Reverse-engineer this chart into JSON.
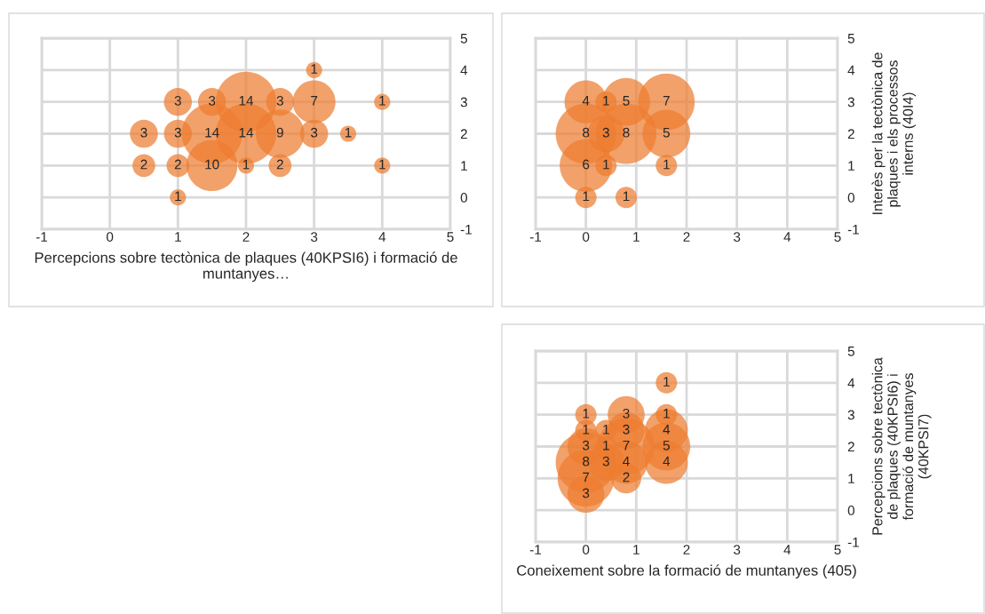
{
  "chart_data": [
    {
      "type": "bubble",
      "xlabel": "Percepcions sobre tectònica de plaques (40KPSI6) i formació de muntanyes…",
      "xlim": [
        -1,
        5
      ],
      "xticks": [
        -1,
        0,
        1,
        2,
        3,
        4,
        5
      ],
      "ylim": [
        -1,
        5
      ],
      "yticks": [
        -1,
        0,
        1,
        2,
        3,
        4,
        5
      ],
      "grid": true,
      "series": [
        {
          "color": "#ed7d31",
          "x": [
            3,
            1,
            1.5,
            2,
            2.5,
            3,
            4,
            0.5,
            1,
            1.5,
            2,
            2.5,
            3,
            3.5,
            0.5,
            1,
            1.5,
            2,
            2.5,
            4,
            1
          ],
          "values": [
            4,
            3,
            3,
            3,
            3,
            3,
            3,
            2,
            2,
            2,
            2,
            2,
            2,
            2,
            1,
            1,
            1,
            1,
            1,
            1,
            0
          ],
          "sizes": [
            1,
            3,
            3,
            14,
            3,
            7,
            1,
            3,
            3,
            14,
            14,
            9,
            3,
            1,
            2,
            2,
            10,
            1,
            2,
            1,
            1
          ],
          "value_labels": [
            "1",
            "3",
            "3",
            "14",
            "3",
            "7",
            "1",
            "3",
            "3",
            "14",
            "14",
            "9",
            "3",
            "1",
            "2",
            "2",
            "10",
            "1",
            "2",
            "1",
            "1"
          ]
        }
      ]
    },
    {
      "type": "bubble",
      "ylabel": "Interès per la tectònica de plaques i els processos interns (40I4)",
      "xlim": [
        -1,
        5
      ],
      "xticks": [
        -1,
        0,
        1,
        2,
        3,
        4,
        5
      ],
      "ylim": [
        -1,
        5
      ],
      "yticks": [
        -1,
        0,
        1,
        2,
        3,
        4,
        5
      ],
      "grid": true,
      "series": [
        {
          "color": "#ed7d31",
          "x": [
            0,
            0.4,
            0.8,
            1.6,
            0,
            0.4,
            0.8,
            1.6,
            0,
            0.4,
            1.6,
            0,
            0.8
          ],
          "values": [
            3,
            3,
            3,
            3,
            2,
            2,
            2,
            2,
            1,
            1,
            1,
            0,
            0
          ],
          "sizes": [
            4,
            1,
            5,
            7,
            8,
            3,
            8,
            5,
            6,
            1,
            1,
            1,
            1
          ],
          "value_labels": [
            "4",
            "1",
            "5",
            "7",
            "8",
            "3",
            "8",
            "5",
            "6",
            "1",
            "1",
            "1",
            "1"
          ]
        }
      ]
    },
    {
      "type": "bubble",
      "xlabel": "Coneixement sobre la formació de muntanyes (405)",
      "ylabel": "Percepcions sobre tectònica de plaques (40KPSI6) i formació de muntanyes (40KPSI7)",
      "xlim": [
        -1,
        5
      ],
      "xticks": [
        -1,
        0,
        1,
        2,
        3,
        4,
        5
      ],
      "ylim": [
        -1,
        5
      ],
      "yticks": [
        -1,
        0,
        1,
        2,
        3,
        4,
        5
      ],
      "grid": true,
      "series": [
        {
          "color": "#ed7d31",
          "x": [
            1.6,
            1.6,
            1.6,
            1.6,
            1.6,
            0,
            0,
            0,
            0,
            0,
            0,
            0.4,
            0.4,
            0.4,
            0.8,
            0.8,
            0.8,
            0.8,
            0.8
          ],
          "values": [
            4,
            3,
            2.5,
            2,
            1.5,
            3,
            2.5,
            2,
            1.5,
            1,
            0.5,
            2.5,
            2,
            1.5,
            3,
            2.5,
            2,
            1.5,
            1
          ],
          "sizes": [
            1,
            1,
            4,
            5,
            4,
            1,
            1,
            3,
            8,
            7,
            3,
            1,
            1,
            3,
            3,
            3,
            7,
            4,
            2
          ],
          "value_labels": [
            "1",
            "1",
            "4",
            "5",
            "4",
            "1",
            "1",
            "3",
            "8",
            "7",
            "3",
            "1",
            "1",
            "3",
            "3",
            "3",
            "7",
            "4",
            "2"
          ]
        }
      ]
    }
  ]
}
